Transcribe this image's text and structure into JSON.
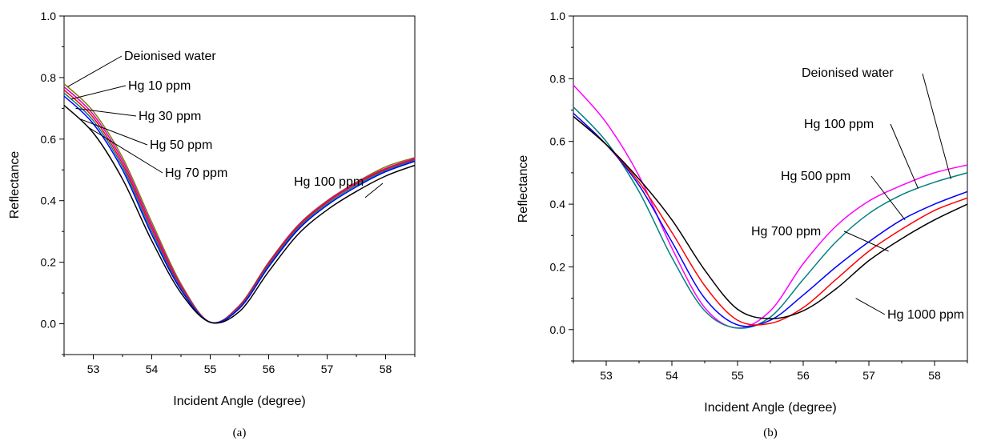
{
  "chart_data": [
    {
      "type": "line",
      "caption": "(a)",
      "xlabel": "Incident Angle (degree)",
      "ylabel": "Reflectance",
      "xlim": [
        52.5,
        58.5
      ],
      "ylim": [
        -0.1,
        1.0
      ],
      "xticks": [
        53,
        54,
        55,
        56,
        57,
        58
      ],
      "yticks": [
        0.0,
        0.2,
        0.4,
        0.6,
        0.8,
        1.0
      ],
      "ytick_labels": [
        "0.0",
        "0.2",
        "0.4",
        "0.6",
        "0.8",
        "1.0"
      ],
      "grid": false,
      "series": [
        {
          "name": "Deionised water",
          "color": "#808000",
          "x": [
            52.5,
            53,
            53.5,
            54,
            54.5,
            55,
            55.5,
            56,
            56.5,
            57,
            57.5,
            58,
            58.5
          ],
          "y": [
            0.78,
            0.69,
            0.54,
            0.33,
            0.13,
            0.005,
            0.06,
            0.2,
            0.32,
            0.4,
            0.46,
            0.51,
            0.54
          ]
        },
        {
          "name": "Hg 10 ppm",
          "color": "#d000d0",
          "x": [
            52.5,
            53,
            53.5,
            54,
            54.5,
            55,
            55.5,
            56,
            56.5,
            57,
            57.5,
            58,
            58.5
          ],
          "y": [
            0.77,
            0.68,
            0.53,
            0.32,
            0.125,
            0.005,
            0.058,
            0.198,
            0.318,
            0.398,
            0.458,
            0.505,
            0.537
          ]
        },
        {
          "name": "Hg 30 ppm",
          "color": "#ff0000",
          "x": [
            52.5,
            53,
            53.5,
            54,
            54.5,
            55,
            55.5,
            56,
            56.5,
            57,
            57.5,
            58,
            58.5
          ],
          "y": [
            0.76,
            0.67,
            0.52,
            0.31,
            0.12,
            0.005,
            0.056,
            0.195,
            0.315,
            0.395,
            0.455,
            0.502,
            0.534
          ]
        },
        {
          "name": "Hg 50 ppm",
          "color": "#008080",
          "x": [
            52.5,
            53,
            53.5,
            54,
            54.5,
            55,
            55.5,
            56,
            56.5,
            57,
            57.5,
            58,
            58.5
          ],
          "y": [
            0.75,
            0.66,
            0.51,
            0.3,
            0.115,
            0.005,
            0.053,
            0.19,
            0.31,
            0.39,
            0.45,
            0.498,
            0.531
          ]
        },
        {
          "name": "Hg 70 ppm",
          "color": "#0000ff",
          "x": [
            52.5,
            53,
            53.5,
            54,
            54.5,
            55,
            55.5,
            56,
            56.5,
            57,
            57.5,
            58,
            58.5
          ],
          "y": [
            0.74,
            0.65,
            0.5,
            0.29,
            0.11,
            0.005,
            0.05,
            0.185,
            0.305,
            0.385,
            0.445,
            0.494,
            0.528
          ]
        },
        {
          "name": "Hg 100 ppm",
          "color": "#000000",
          "x": [
            52.5,
            53,
            53.5,
            54,
            54.5,
            55,
            55.5,
            56,
            56.5,
            57,
            57.5,
            58,
            58.5
          ],
          "y": [
            0.71,
            0.62,
            0.47,
            0.27,
            0.1,
            0.005,
            0.04,
            0.17,
            0.29,
            0.37,
            0.43,
            0.48,
            0.515
          ]
        }
      ],
      "annotations": [
        {
          "text": "Deionised water",
          "series": "Deionised water"
        },
        {
          "text": "Hg 10 ppm",
          "series": "Hg 10 ppm"
        },
        {
          "text": "Hg 30 ppm",
          "series": "Hg 30 ppm"
        },
        {
          "text": "Hg 50 ppm",
          "series": "Hg 50 ppm"
        },
        {
          "text": "Hg 70 ppm",
          "series": "Hg 70 ppm"
        },
        {
          "text": "Hg 100 ppm",
          "series": "Hg 100 ppm"
        }
      ]
    },
    {
      "type": "line",
      "caption": "(b)",
      "xlabel": "Incident Angle (degree)",
      "ylabel": "Reflectance",
      "xlim": [
        52.5,
        58.5
      ],
      "ylim": [
        -0.1,
        1.0
      ],
      "xticks": [
        53,
        54,
        55,
        56,
        57,
        58
      ],
      "yticks": [
        0.0,
        0.2,
        0.4,
        0.6,
        0.8,
        1.0
      ],
      "ytick_labels": [
        "0.0",
        "0.2",
        "0.4",
        "0.6",
        "0.8",
        "1.0"
      ],
      "grid": false,
      "series": [
        {
          "name": "Deionised water",
          "color": "#ff00ff",
          "x": [
            52.5,
            53,
            53.5,
            54,
            54.5,
            55,
            55.5,
            56,
            56.5,
            57,
            57.5,
            58,
            58.5
          ],
          "y": [
            0.78,
            0.66,
            0.49,
            0.26,
            0.07,
            0.005,
            0.06,
            0.21,
            0.33,
            0.41,
            0.46,
            0.5,
            0.525
          ]
        },
        {
          "name": "Hg 100 ppm",
          "color": "#008080",
          "x": [
            52.5,
            53,
            53.5,
            54,
            54.5,
            55,
            55.5,
            56,
            56.5,
            57,
            57.5,
            58,
            58.5
          ],
          "y": [
            0.71,
            0.6,
            0.44,
            0.23,
            0.06,
            0.005,
            0.04,
            0.16,
            0.28,
            0.37,
            0.43,
            0.47,
            0.5
          ]
        },
        {
          "name": "Hg 500 ppm",
          "color": "#0000ff",
          "x": [
            52.5,
            53,
            53.5,
            54,
            54.5,
            55,
            55.5,
            56,
            56.5,
            57,
            57.5,
            58,
            58.5
          ],
          "y": [
            0.69,
            0.59,
            0.46,
            0.28,
            0.1,
            0.015,
            0.03,
            0.11,
            0.2,
            0.28,
            0.35,
            0.4,
            0.44
          ]
        },
        {
          "name": "Hg 700 ppm",
          "color": "#ff0000",
          "x": [
            52.5,
            53,
            53.5,
            54,
            54.5,
            55,
            55.5,
            56,
            56.5,
            57,
            57.5,
            58,
            58.5
          ],
          "y": [
            0.68,
            0.59,
            0.47,
            0.31,
            0.14,
            0.03,
            0.02,
            0.07,
            0.16,
            0.25,
            0.32,
            0.38,
            0.42
          ]
        },
        {
          "name": "Hg 1000 ppm",
          "color": "#000000",
          "x": [
            52.5,
            53,
            53.5,
            54,
            54.5,
            55,
            55.5,
            56,
            56.5,
            57,
            57.5,
            58,
            58.5
          ],
          "y": [
            0.68,
            0.59,
            0.48,
            0.35,
            0.19,
            0.065,
            0.035,
            0.06,
            0.13,
            0.22,
            0.29,
            0.35,
            0.4
          ]
        }
      ],
      "annotations": [
        {
          "text": "Deionised water",
          "series": "Deionised water"
        },
        {
          "text": "Hg 100 ppm",
          "series": "Hg 100 ppm"
        },
        {
          "text": "Hg 500 ppm",
          "series": "Hg 500 ppm"
        },
        {
          "text": "Hg 700 ppm",
          "series": "Hg 700 ppm"
        },
        {
          "text": "Hg 1000 ppm",
          "series": "Hg 1000 ppm"
        }
      ]
    }
  ]
}
